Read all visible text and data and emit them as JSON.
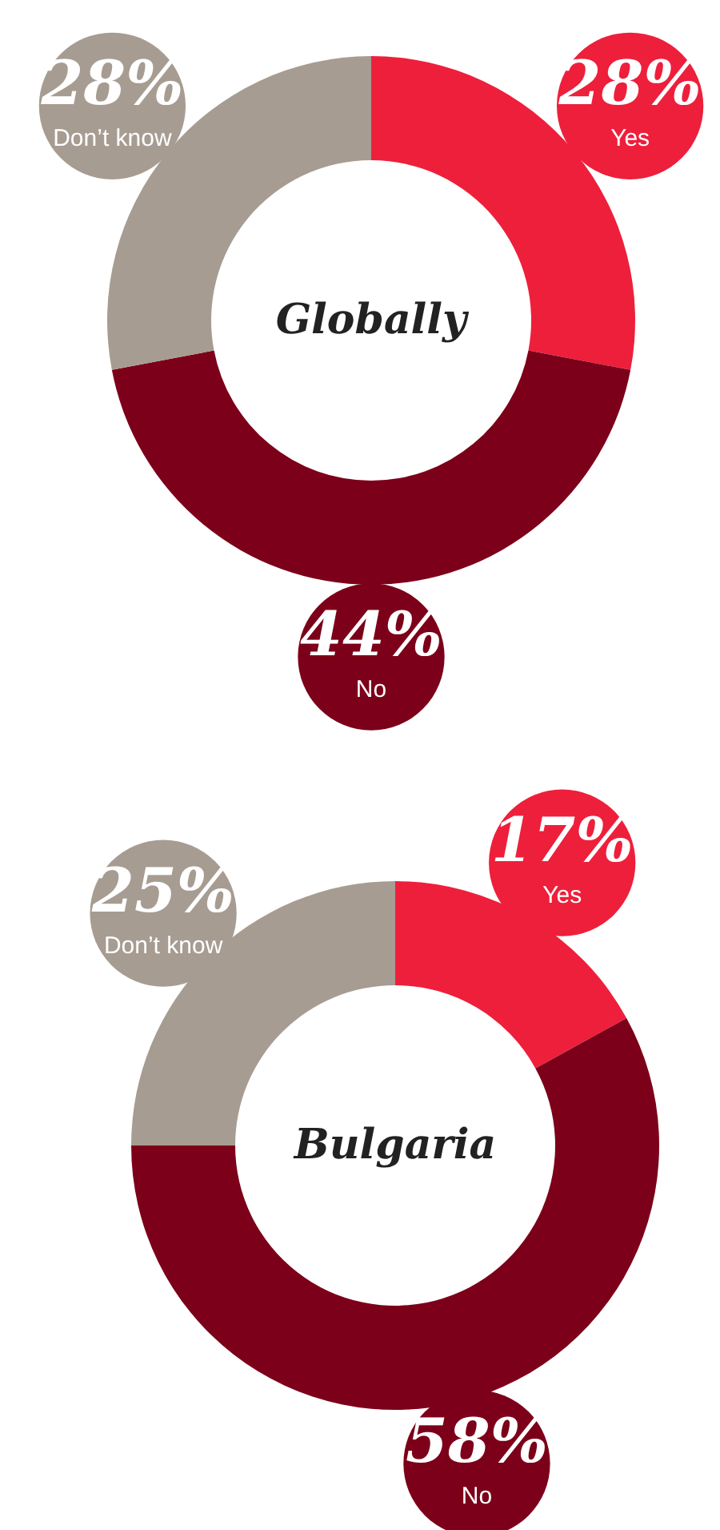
{
  "chart_data": [
    {
      "type": "donut",
      "title": "Globally",
      "categories": [
        "Yes",
        "No",
        "Don’t know"
      ],
      "values": [
        28,
        44,
        28
      ],
      "colors": [
        "#ee1f3b",
        "#7c0019",
        "#a79c92"
      ],
      "value_labels": [
        "28%",
        "44%",
        "28%"
      ],
      "legend": false
    },
    {
      "type": "donut",
      "title": "Bulgaria",
      "categories": [
        "Yes",
        "No",
        "Don’t know"
      ],
      "values": [
        17,
        58,
        25
      ],
      "colors": [
        "#ee1f3b",
        "#7c0019",
        "#a79c92"
      ],
      "value_labels": [
        "17%",
        "58%",
        "25%"
      ],
      "legend": false
    }
  ]
}
